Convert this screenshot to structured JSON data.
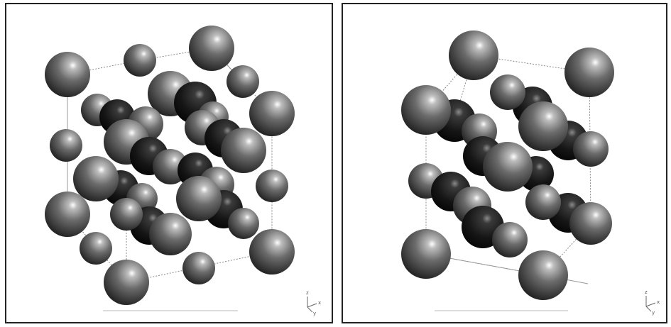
{
  "panels": [
    {
      "axis_labels": [
        "z",
        "y",
        "x"
      ]
    },
    {
      "axis_labels": [
        "z",
        "y",
        "x"
      ]
    }
  ]
}
